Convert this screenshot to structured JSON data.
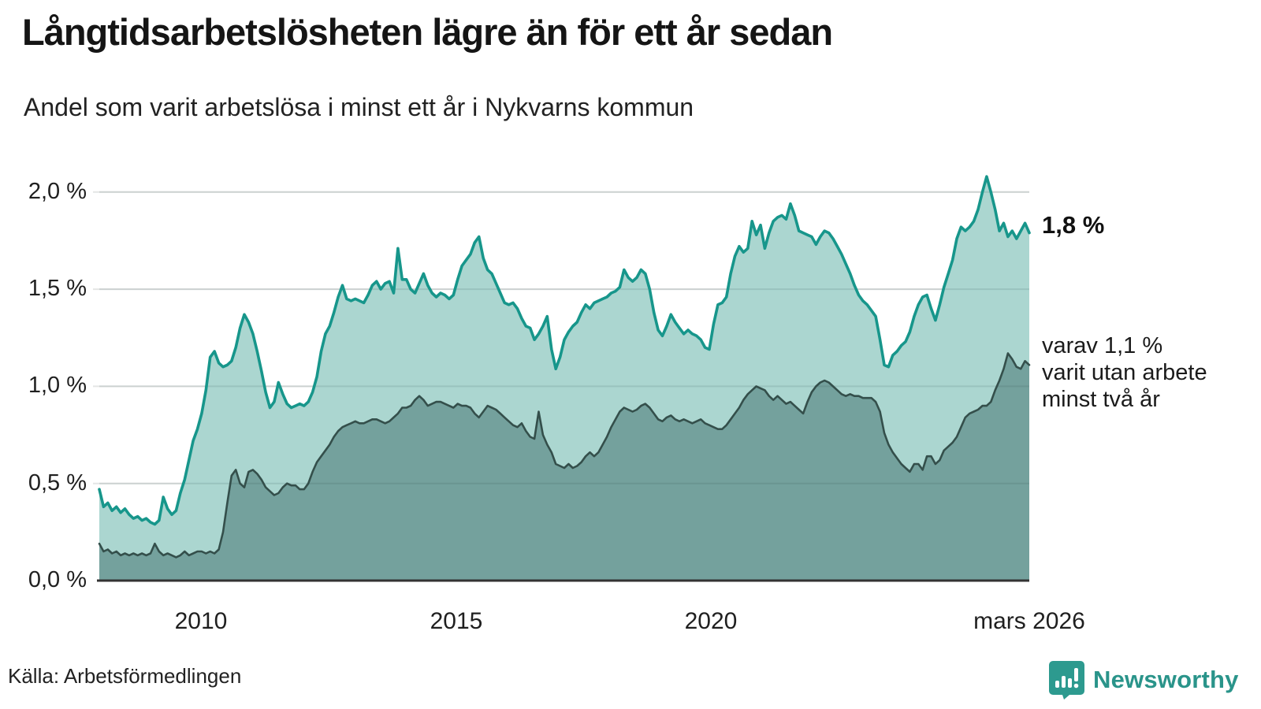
{
  "header": {
    "title": "Långtidsarbetslösheten lägre än för ett år sedan",
    "subtitle": "Andel som varit arbetslösa i minst ett år i Nykvarns kommun"
  },
  "annotations": {
    "latest_total": "1,8 %",
    "note_lines": [
      "varav 1,1 %",
      "varit utan arbete",
      "minst två år"
    ]
  },
  "source": {
    "label": "Källa: Arbetsförmedlingen"
  },
  "branding": {
    "logo_text": "Newsworthy",
    "logo_icon": "bar-chart-speech-bubble-icon",
    "logo_color": "#2d9a8f"
  },
  "colors": {
    "line_total": "#17968b",
    "fill_total": "#abd6d0",
    "line_two_years": "#344f4b",
    "fill_two_years": "#74a19d",
    "gridline": "#e4e6e5",
    "axis": "#333333",
    "text": "#1f1f1f"
  },
  "chart_data": {
    "type": "area",
    "title": "Långtidsarbetslösheten lägre än för ett år sedan",
    "subtitle": "Andel som varit arbetslösa i minst ett år i Nykvarns kommun",
    "xlabel": "",
    "ylabel": "",
    "x_start": {
      "year": 2008,
      "month": 1
    },
    "x_end": {
      "year": 2026,
      "month": 3
    },
    "x_ticks": [
      {
        "label": "2010",
        "t": 2010.0
      },
      {
        "label": "2015",
        "t": 2015.0
      },
      {
        "label": "2020",
        "t": 2020.0
      },
      {
        "label": "mars 2026",
        "t": 2026.17
      }
    ],
    "y_tick_values": [
      0,
      0.5,
      1.0,
      1.5,
      2.0
    ],
    "y_tick_labels": [
      "0,0 %",
      "0,5 %",
      "1,0 %",
      "1,5 %",
      "2,0 %"
    ],
    "ylim": [
      0,
      2.15
    ],
    "grid": true,
    "legend_position": "none",
    "unit": "%",
    "frequency": "monthly",
    "series": [
      {
        "name": "Arbetslösa minst ett år",
        "color": "#17968b",
        "fill": "#abd6d0",
        "latest_value": 1.8,
        "values": [
          0.47,
          0.38,
          0.4,
          0.36,
          0.38,
          0.35,
          0.37,
          0.34,
          0.32,
          0.33,
          0.31,
          0.32,
          0.3,
          0.29,
          0.31,
          0.43,
          0.37,
          0.34,
          0.36,
          0.45,
          0.52,
          0.62,
          0.72,
          0.78,
          0.86,
          0.98,
          1.15,
          1.18,
          1.12,
          1.1,
          1.11,
          1.13,
          1.2,
          1.3,
          1.37,
          1.33,
          1.27,
          1.18,
          1.08,
          0.97,
          0.89,
          0.92,
          1.02,
          0.96,
          0.91,
          0.89,
          0.9,
          0.91,
          0.9,
          0.92,
          0.97,
          1.05,
          1.18,
          1.27,
          1.31,
          1.38,
          1.46,
          1.52,
          1.45,
          1.44,
          1.45,
          1.44,
          1.43,
          1.47,
          1.52,
          1.54,
          1.5,
          1.53,
          1.54,
          1.48,
          1.71,
          1.55,
          1.55,
          1.5,
          1.48,
          1.53,
          1.58,
          1.52,
          1.48,
          1.46,
          1.48,
          1.47,
          1.45,
          1.47,
          1.55,
          1.62,
          1.65,
          1.68,
          1.74,
          1.77,
          1.66,
          1.6,
          1.58,
          1.53,
          1.48,
          1.43,
          1.42,
          1.43,
          1.4,
          1.35,
          1.31,
          1.3,
          1.24,
          1.27,
          1.31,
          1.36,
          1.19,
          1.09,
          1.15,
          1.24,
          1.28,
          1.31,
          1.33,
          1.38,
          1.42,
          1.4,
          1.43,
          1.44,
          1.45,
          1.46,
          1.48,
          1.49,
          1.51,
          1.6,
          1.56,
          1.54,
          1.56,
          1.6,
          1.58,
          1.5,
          1.38,
          1.29,
          1.26,
          1.31,
          1.37,
          1.33,
          1.3,
          1.27,
          1.29,
          1.27,
          1.26,
          1.24,
          1.2,
          1.19,
          1.32,
          1.42,
          1.43,
          1.46,
          1.58,
          1.67,
          1.72,
          1.69,
          1.71,
          1.85,
          1.78,
          1.83,
          1.71,
          1.79,
          1.85,
          1.87,
          1.88,
          1.86,
          1.94,
          1.88,
          1.8,
          1.79,
          1.78,
          1.77,
          1.73,
          1.77,
          1.8,
          1.79,
          1.76,
          1.72,
          1.68,
          1.63,
          1.58,
          1.52,
          1.47,
          1.44,
          1.42,
          1.39,
          1.36,
          1.24,
          1.11,
          1.1,
          1.16,
          1.18,
          1.21,
          1.23,
          1.28,
          1.36,
          1.42,
          1.46,
          1.47,
          1.4,
          1.34,
          1.42,
          1.51,
          1.58,
          1.65,
          1.76,
          1.82,
          1.8,
          1.82,
          1.85,
          1.91,
          2.0,
          2.08,
          2.0,
          1.91,
          1.8,
          1.84,
          1.77,
          1.8,
          1.76,
          1.8,
          1.84,
          1.79
        ]
      },
      {
        "name": "Arbetslösa minst två år",
        "color": "#344f4b",
        "fill": "#74a19d",
        "latest_value": 1.1,
        "values": [
          0.19,
          0.15,
          0.16,
          0.14,
          0.15,
          0.13,
          0.14,
          0.13,
          0.14,
          0.13,
          0.14,
          0.13,
          0.14,
          0.19,
          0.15,
          0.13,
          0.14,
          0.13,
          0.12,
          0.13,
          0.15,
          0.13,
          0.14,
          0.15,
          0.15,
          0.14,
          0.15,
          0.14,
          0.16,
          0.25,
          0.4,
          0.54,
          0.57,
          0.5,
          0.48,
          0.56,
          0.57,
          0.55,
          0.52,
          0.48,
          0.46,
          0.44,
          0.45,
          0.48,
          0.5,
          0.49,
          0.49,
          0.47,
          0.47,
          0.5,
          0.56,
          0.61,
          0.64,
          0.67,
          0.7,
          0.74,
          0.77,
          0.79,
          0.8,
          0.81,
          0.82,
          0.81,
          0.81,
          0.82,
          0.83,
          0.83,
          0.82,
          0.81,
          0.82,
          0.84,
          0.86,
          0.89,
          0.89,
          0.9,
          0.93,
          0.95,
          0.93,
          0.9,
          0.91,
          0.92,
          0.92,
          0.91,
          0.9,
          0.89,
          0.91,
          0.9,
          0.9,
          0.89,
          0.86,
          0.84,
          0.87,
          0.9,
          0.89,
          0.88,
          0.86,
          0.84,
          0.82,
          0.8,
          0.79,
          0.81,
          0.77,
          0.74,
          0.73,
          0.87,
          0.75,
          0.7,
          0.66,
          0.6,
          0.59,
          0.58,
          0.6,
          0.58,
          0.59,
          0.61,
          0.64,
          0.66,
          0.64,
          0.66,
          0.7,
          0.74,
          0.79,
          0.83,
          0.87,
          0.89,
          0.88,
          0.87,
          0.88,
          0.9,
          0.91,
          0.89,
          0.86,
          0.83,
          0.82,
          0.84,
          0.85,
          0.83,
          0.82,
          0.83,
          0.82,
          0.81,
          0.82,
          0.83,
          0.81,
          0.8,
          0.79,
          0.78,
          0.78,
          0.8,
          0.83,
          0.86,
          0.89,
          0.93,
          0.96,
          0.98,
          1.0,
          0.99,
          0.98,
          0.95,
          0.93,
          0.95,
          0.93,
          0.91,
          0.92,
          0.9,
          0.88,
          0.86,
          0.92,
          0.97,
          1.0,
          1.02,
          1.03,
          1.02,
          1.0,
          0.98,
          0.96,
          0.95,
          0.96,
          0.95,
          0.95,
          0.94,
          0.94,
          0.94,
          0.92,
          0.87,
          0.76,
          0.7,
          0.66,
          0.63,
          0.6,
          0.58,
          0.56,
          0.6,
          0.6,
          0.57,
          0.64,
          0.64,
          0.6,
          0.62,
          0.67,
          0.69,
          0.71,
          0.74,
          0.79,
          0.84,
          0.86,
          0.87,
          0.88,
          0.9,
          0.9,
          0.92,
          0.98,
          1.03,
          1.09,
          1.17,
          1.14,
          1.1,
          1.09,
          1.13,
          1.11
        ]
      }
    ]
  }
}
